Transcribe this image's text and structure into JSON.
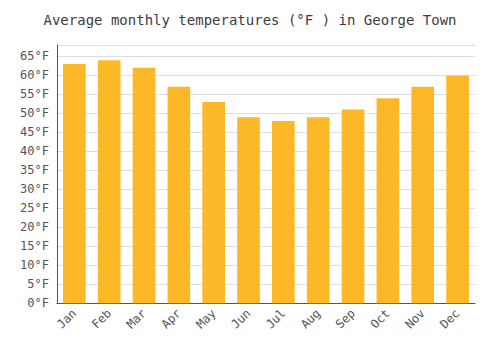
{
  "chart_data": {
    "type": "bar",
    "title": "Average monthly temperatures (°F ) in George Town",
    "categories": [
      "Jan",
      "Feb",
      "Mar",
      "Apr",
      "May",
      "Jun",
      "Jul",
      "Aug",
      "Sep",
      "Oct",
      "Nov",
      "Dec"
    ],
    "values": [
      63,
      64,
      62,
      57,
      53,
      49,
      48,
      49,
      51,
      54,
      57,
      60
    ],
    "color": "#FDB827",
    "ylim": [
      0,
      68
    ],
    "yticks": [
      {
        "value": 0,
        "label": "0°F"
      },
      {
        "value": 5,
        "label": "5°F"
      },
      {
        "value": 10,
        "label": "10°F"
      },
      {
        "value": 15,
        "label": "15°F"
      },
      {
        "value": 20,
        "label": "20°F"
      },
      {
        "value": 25,
        "label": "25°F"
      },
      {
        "value": 30,
        "label": "30°F"
      },
      {
        "value": 35,
        "label": "35°F"
      },
      {
        "value": 40,
        "label": "40°F"
      },
      {
        "value": 45,
        "label": "45°F"
      },
      {
        "value": 50,
        "label": "50°F"
      },
      {
        "value": 55,
        "label": "55°F"
      },
      {
        "value": 60,
        "label": "60°F"
      },
      {
        "value": 65,
        "label": "65°F"
      }
    ],
    "grid": true
  }
}
